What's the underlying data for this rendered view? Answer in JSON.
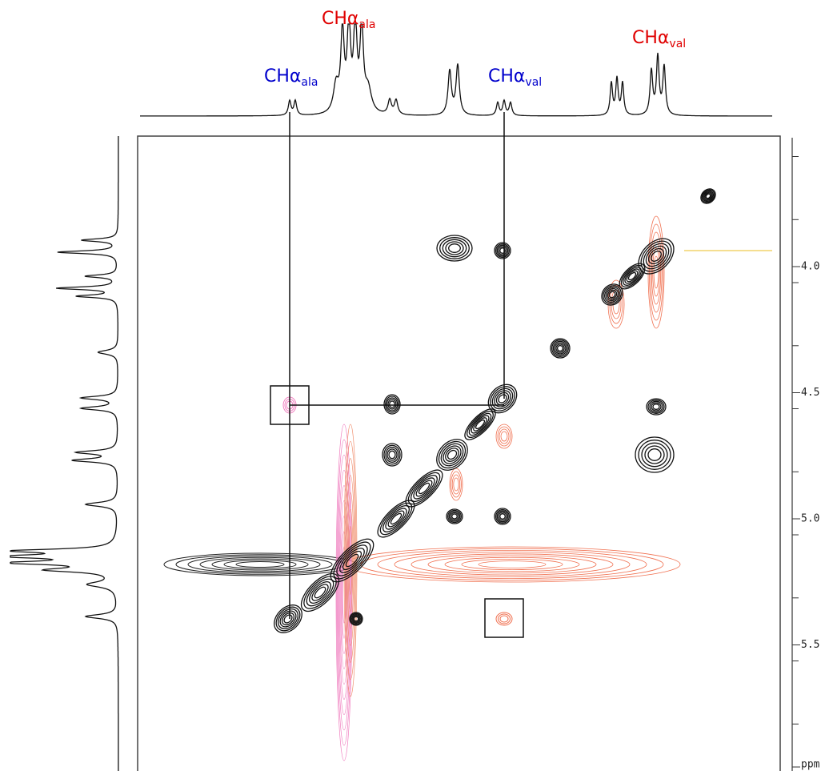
{
  "labels": [
    {
      "text": "CHα",
      "subscript": "ala",
      "color": "#e00000"
    },
    {
      "text": "CHα",
      "subscript": "ala",
      "color": "#0000cc"
    },
    {
      "text": "CHα",
      "subscript": "val",
      "color": "#0000cc"
    },
    {
      "text": "CHα",
      "subscript": "val",
      "color": "#e00000"
    }
  ],
  "axis": {
    "ticks": [
      "4.0",
      "4.5",
      "5.0",
      "5.5"
    ],
    "unit": "ppm"
  }
}
